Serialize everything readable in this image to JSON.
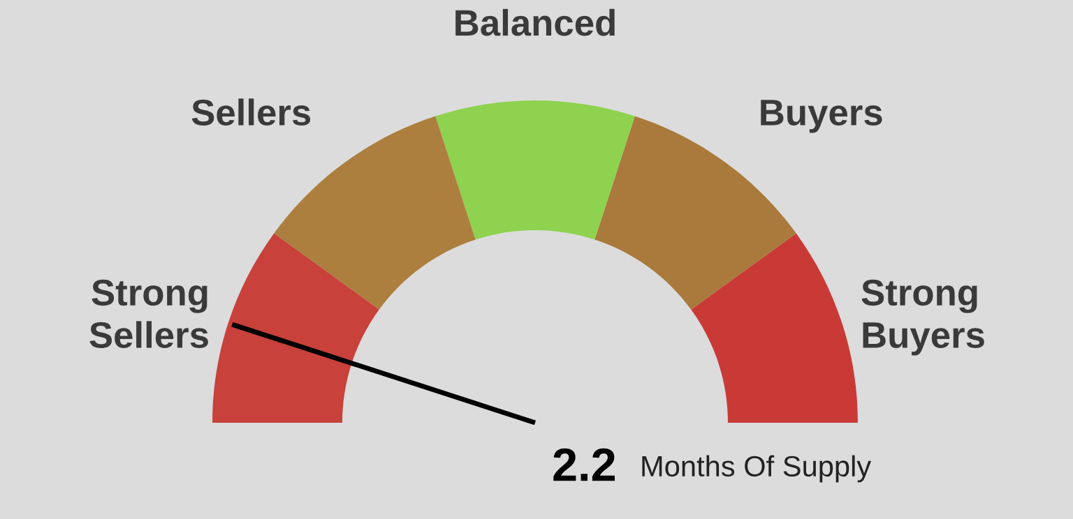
{
  "chart_data": {
    "type": "donut",
    "categories": [
      "Strong\nBuyers",
      "Buyers",
      "Balanced",
      "Sellers",
      "Strong\nSellers"
    ],
    "values": [
      20,
      20,
      20,
      20,
      20
    ],
    "colors": [
      "#c93a37",
      "#a97a3c",
      "#8ed24f",
      "#ad7f3e",
      "#c8413a"
    ],
    "needle": "Strong\nSellers",
    "annotations": [
      "2.2",
      "Months Of Supply"
    ]
  }
}
